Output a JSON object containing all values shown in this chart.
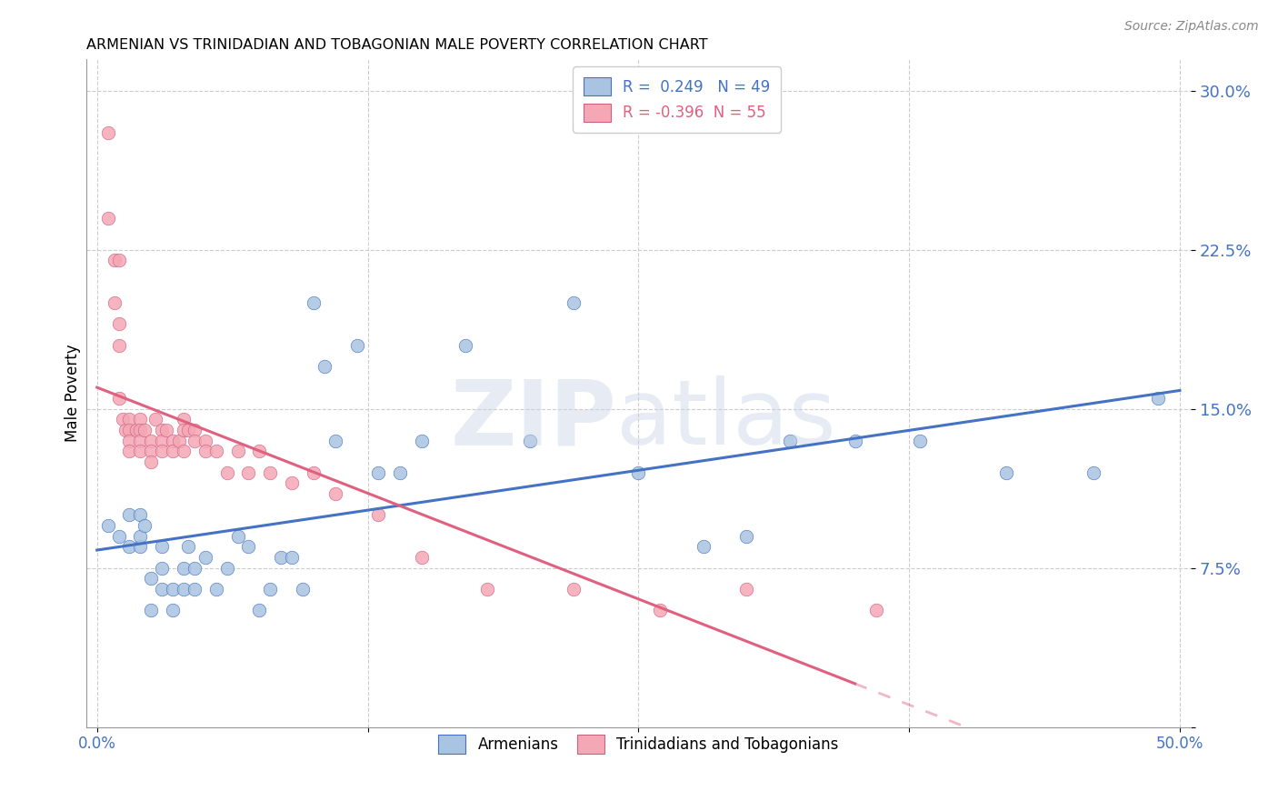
{
  "title": "ARMENIAN VS TRINIDADIAN AND TOBAGONIAN MALE POVERTY CORRELATION CHART",
  "source": "Source: ZipAtlas.com",
  "ylabel": "Male Poverty",
  "y_ticks": [
    0.0,
    0.075,
    0.15,
    0.225,
    0.3
  ],
  "y_tick_labels": [
    "",
    "7.5%",
    "15.0%",
    "22.5%",
    "30.0%"
  ],
  "x_ticks": [
    0.0,
    0.125,
    0.25,
    0.375,
    0.5
  ],
  "x_tick_labels": [
    "0.0%",
    "",
    "",
    "",
    "50.0%"
  ],
  "xlim": [
    -0.005,
    0.505
  ],
  "ylim": [
    0.0,
    0.315
  ],
  "armenian_R": 0.249,
  "armenian_N": 49,
  "trinidadian_R": -0.396,
  "trinidadian_N": 55,
  "legend_label1": "Armenians",
  "legend_label2": "Trinidadians and Tobagonians",
  "color_armenian": "#a8c4e0",
  "color_trinidadian": "#f4a7b5",
  "color_line_armenian": "#4472c4",
  "color_line_trinidadian": "#e06080",
  "color_axis_labels": "#4472c4",
  "armenian_x": [
    0.005,
    0.01,
    0.015,
    0.015,
    0.02,
    0.02,
    0.02,
    0.022,
    0.025,
    0.025,
    0.03,
    0.03,
    0.03,
    0.035,
    0.035,
    0.04,
    0.04,
    0.042,
    0.045,
    0.045,
    0.05,
    0.055,
    0.06,
    0.065,
    0.07,
    0.075,
    0.08,
    0.085,
    0.09,
    0.095,
    0.1,
    0.105,
    0.11,
    0.12,
    0.13,
    0.14,
    0.15,
    0.17,
    0.2,
    0.22,
    0.25,
    0.28,
    0.3,
    0.32,
    0.35,
    0.38,
    0.42,
    0.46,
    0.49
  ],
  "armenian_y": [
    0.095,
    0.09,
    0.085,
    0.1,
    0.085,
    0.09,
    0.1,
    0.095,
    0.055,
    0.07,
    0.065,
    0.075,
    0.085,
    0.055,
    0.065,
    0.065,
    0.075,
    0.085,
    0.065,
    0.075,
    0.08,
    0.065,
    0.075,
    0.09,
    0.085,
    0.055,
    0.065,
    0.08,
    0.08,
    0.065,
    0.2,
    0.17,
    0.135,
    0.18,
    0.12,
    0.12,
    0.135,
    0.18,
    0.135,
    0.2,
    0.12,
    0.085,
    0.09,
    0.135,
    0.135,
    0.135,
    0.12,
    0.12,
    0.155
  ],
  "trinidadian_x": [
    0.005,
    0.005,
    0.008,
    0.008,
    0.01,
    0.01,
    0.01,
    0.01,
    0.012,
    0.013,
    0.015,
    0.015,
    0.015,
    0.015,
    0.018,
    0.02,
    0.02,
    0.02,
    0.02,
    0.022,
    0.025,
    0.025,
    0.025,
    0.027,
    0.03,
    0.03,
    0.03,
    0.032,
    0.035,
    0.035,
    0.038,
    0.04,
    0.04,
    0.04,
    0.042,
    0.045,
    0.045,
    0.05,
    0.05,
    0.055,
    0.06,
    0.065,
    0.07,
    0.075,
    0.08,
    0.09,
    0.1,
    0.11,
    0.13,
    0.15,
    0.18,
    0.22,
    0.26,
    0.3,
    0.36
  ],
  "trinidadian_y": [
    0.28,
    0.24,
    0.22,
    0.2,
    0.22,
    0.19,
    0.18,
    0.155,
    0.145,
    0.14,
    0.145,
    0.14,
    0.135,
    0.13,
    0.14,
    0.145,
    0.14,
    0.135,
    0.13,
    0.14,
    0.135,
    0.13,
    0.125,
    0.145,
    0.14,
    0.135,
    0.13,
    0.14,
    0.135,
    0.13,
    0.135,
    0.145,
    0.14,
    0.13,
    0.14,
    0.14,
    0.135,
    0.135,
    0.13,
    0.13,
    0.12,
    0.13,
    0.12,
    0.13,
    0.12,
    0.115,
    0.12,
    0.11,
    0.1,
    0.08,
    0.065,
    0.065,
    0.055,
    0.065,
    0.055
  ],
  "line_arm_x_start": 0.0,
  "line_arm_x_end": 0.5,
  "line_tri_solid_end": 0.35,
  "line_tri_dash_end": 0.5
}
